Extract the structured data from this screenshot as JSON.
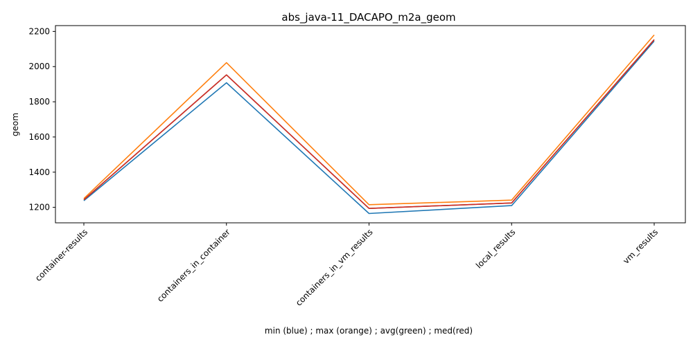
{
  "chart_data": {
    "type": "line",
    "title": "abs_java-11_DACAPO_m2a_geom",
    "xlabel": "min (blue) ; max (orange) ; avg(green) ; med(red)",
    "ylabel": "geom",
    "categories": [
      "container-results",
      "containers_in_container",
      "containers_in_vm_results",
      "local_results",
      "vm_results"
    ],
    "yticks": [
      1200,
      1400,
      1600,
      1800,
      2000,
      2200
    ],
    "ylim": [
      1112,
      2233
    ],
    "grid": false,
    "series": [
      {
        "key": "min",
        "color": "#1f77b4",
        "values": [
          1238,
          1908,
          1165,
          1210,
          2145
        ]
      },
      {
        "key": "max",
        "color": "#ff7f0e",
        "values": [
          1250,
          2022,
          1215,
          1241,
          2180
        ]
      },
      {
        "key": "avg",
        "color": "#2ca02c",
        "values": [
          1243,
          1953,
          1194,
          1225,
          2153
        ]
      },
      {
        "key": "med",
        "color": "#d62728",
        "values": [
          1243,
          1953,
          1194,
          1225,
          2153
        ]
      }
    ]
  }
}
